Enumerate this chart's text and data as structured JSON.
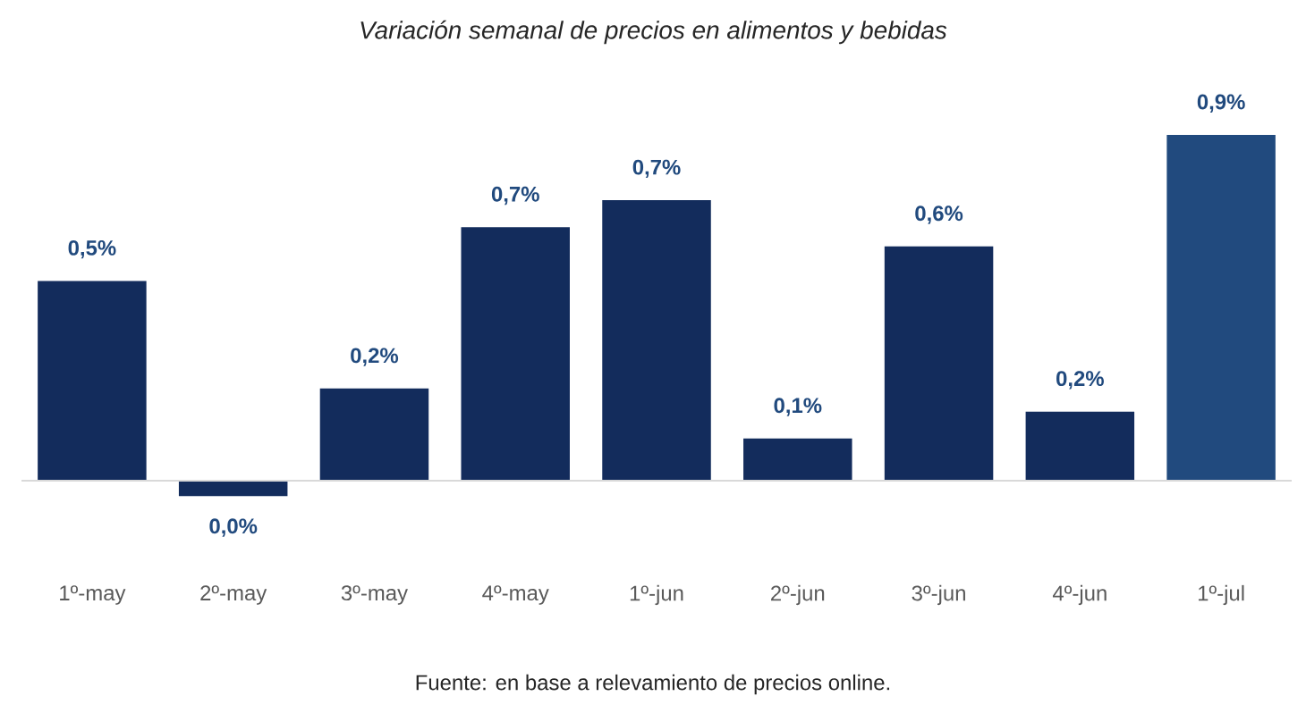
{
  "chart_data": {
    "type": "bar",
    "title": "Variación semanal de precios en alimentos y bebidas",
    "categories": [
      "1º-may",
      "2º-may",
      "3º-may",
      "4º-may",
      "1º-jun",
      "2º-jun",
      "3º-jun",
      "4º-jun",
      "1º-jul"
    ],
    "values": [
      0.52,
      -0.04,
      0.24,
      0.66,
      0.73,
      0.11,
      0.61,
      0.18,
      0.9
    ],
    "value_labels": [
      "0,5%",
      "0,0%",
      "0,2%",
      "0,7%",
      "0,7%",
      "0,1%",
      "0,6%",
      "0,2%",
      "0,9%"
    ],
    "colors": [
      "#132c5c",
      "#132c5c",
      "#132c5c",
      "#132c5c",
      "#132c5c",
      "#132c5c",
      "#132c5c",
      "#132c5c",
      "#214a7e"
    ],
    "annotations": [
      "Fuente: en base a relevamiento de precios online."
    ]
  }
}
